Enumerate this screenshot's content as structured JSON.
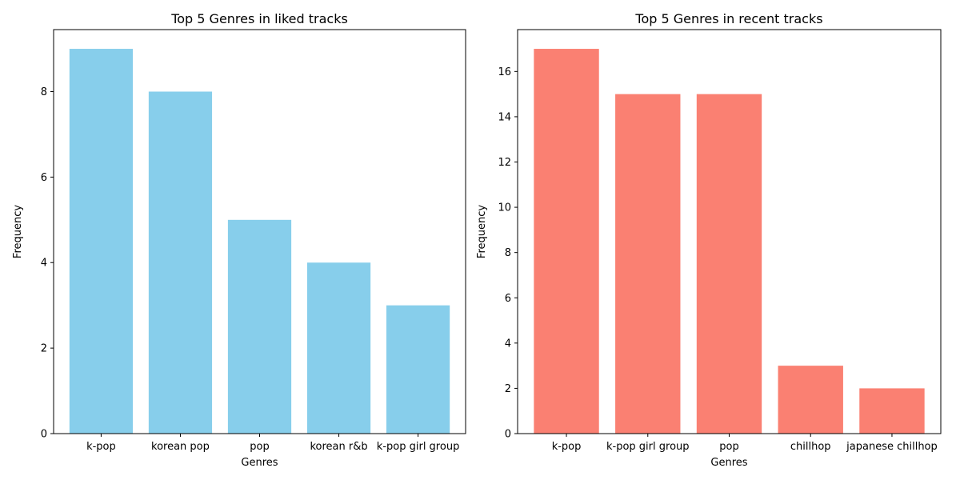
{
  "chart_data": [
    {
      "type": "bar",
      "title": "Top 5 Genres in liked tracks",
      "xlabel": "Genres",
      "ylabel": "Frequency",
      "categories": [
        "k-pop",
        "korean pop",
        "pop",
        "korean r&b",
        "k-pop girl group"
      ],
      "values": [
        9,
        8,
        5,
        4,
        3
      ],
      "ylim": [
        0,
        9.45
      ],
      "yticks": [
        0,
        2,
        4,
        6,
        8
      ],
      "color": "#87CEEB",
      "grid": false
    },
    {
      "type": "bar",
      "title": "Top 5 Genres in recent tracks",
      "xlabel": "Genres",
      "ylabel": "Frequency",
      "categories": [
        "k-pop",
        "k-pop girl group",
        "pop",
        "chillhop",
        "japanese chillhop"
      ],
      "values": [
        17,
        15,
        15,
        3,
        2
      ],
      "ylim": [
        0,
        17.85
      ],
      "yticks": [
        0,
        2,
        4,
        6,
        8,
        10,
        12,
        14,
        16
      ],
      "color": "#FA8072",
      "grid": false
    }
  ]
}
